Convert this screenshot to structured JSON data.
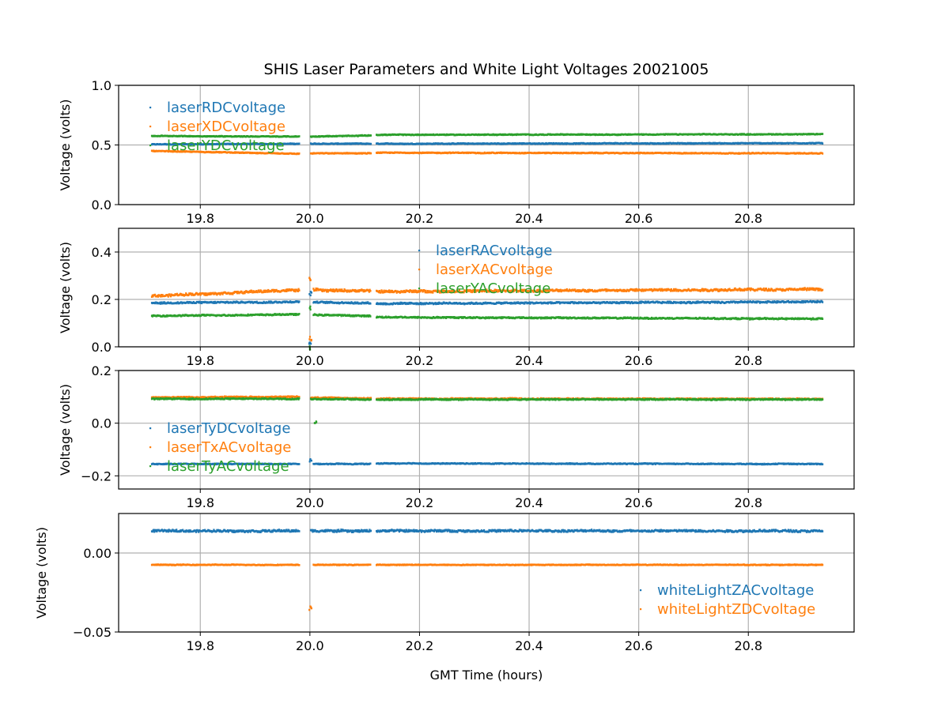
{
  "chart_data": {
    "type": "scatter",
    "title": "SHIS Laser Parameters and White Light Voltages 20021005",
    "xlabel": "GMT Time (hours)",
    "xlim": [
      19.651,
      20.993
    ],
    "xticks": [
      19.8,
      20.0,
      20.2,
      20.4,
      20.6,
      20.8
    ],
    "xtick_labels": [
      "19.8",
      "20.0",
      "20.2",
      "20.4",
      "20.6",
      "20.8"
    ],
    "grid": true,
    "colors": {
      "blue": "#1f77b4",
      "orange": "#ff7f0e",
      "green": "#2ca02c"
    },
    "panels": [
      {
        "ylabel": "Voltage (volts)",
        "ylim": [
          0,
          1.0
        ],
        "yticks": [
          0,
          0.5,
          1.0
        ],
        "ytick_labels": [
          "0.0",
          "0.5",
          "1.0"
        ],
        "legend": "upper-left",
        "series": [
          {
            "name": "laserRDCvoltage",
            "color": "#1f77b4",
            "noise": 0.006,
            "segments": [
              [
                19.71,
                19.98,
                0.505,
                0.51
              ],
              [
                20.0,
                20.11,
                0.51,
                0.51
              ],
              [
                20.12,
                20.935,
                0.51,
                0.515
              ]
            ],
            "spikes": []
          },
          {
            "name": "laserXDCvoltage",
            "color": "#ff7f0e",
            "noise": 0.006,
            "segments": [
              [
                19.71,
                19.98,
                0.45,
                0.425
              ],
              [
                20.0,
                20.11,
                0.43,
                0.43
              ],
              [
                20.12,
                20.935,
                0.435,
                0.43
              ]
            ],
            "spikes": []
          },
          {
            "name": "laserYDCvoltage",
            "color": "#2ca02c",
            "noise": 0.006,
            "segments": [
              [
                19.71,
                19.98,
                0.575,
                0.57
              ],
              [
                20.0,
                20.11,
                0.57,
                0.58
              ],
              [
                20.12,
                20.935,
                0.585,
                0.59
              ]
            ],
            "spikes": []
          }
        ]
      },
      {
        "ylabel": "Voltage (volts)",
        "ylim": [
          0,
          0.5
        ],
        "yticks": [
          0,
          0.2,
          0.4
        ],
        "ytick_labels": [
          "0.0",
          "0.2",
          "0.4"
        ],
        "legend": "upper-center",
        "series": [
          {
            "name": "laserRACvoltage",
            "color": "#1f77b4",
            "noise": 0.006,
            "segments": [
              [
                19.71,
                19.98,
                0.185,
                0.19
              ],
              [
                20.005,
                20.11,
                0.188,
                0.185
              ],
              [
                20.12,
                20.935,
                0.182,
                0.19
              ]
            ],
            "spikes": [
              [
                20.0,
                0.23
              ],
              [
                20.0,
                0.015
              ]
            ]
          },
          {
            "name": "laserXACvoltage",
            "color": "#ff7f0e",
            "noise": 0.009,
            "segments": [
              [
                19.71,
                19.98,
                0.215,
                0.24
              ],
              [
                20.005,
                20.11,
                0.24,
                0.235
              ],
              [
                20.12,
                20.935,
                0.233,
                0.243
              ]
            ],
            "spikes": [
              [
                20.0,
                0.295
              ],
              [
                20.0,
                0.04
              ]
            ]
          },
          {
            "name": "laserYACvoltage",
            "color": "#2ca02c",
            "noise": 0.005,
            "segments": [
              [
                19.71,
                19.98,
                0.13,
                0.137
              ],
              [
                20.005,
                20.11,
                0.135,
                0.13
              ],
              [
                20.12,
                20.935,
                0.125,
                0.118
              ]
            ],
            "spikes": [
              [
                20.0,
                0.17
              ],
              [
                20.0,
                0.0
              ]
            ]
          }
        ]
      },
      {
        "ylabel": "Voltage (volts)",
        "ylim": [
          -0.25,
          0.2
        ],
        "yticks": [
          -0.2,
          0.0,
          0.2
        ],
        "ytick_labels": [
          "−0.2",
          "0.0",
          "0.2"
        ],
        "legend": "center-left",
        "series": [
          {
            "name": "laserTyDCvoltage",
            "color": "#1f77b4",
            "noise": 0.003,
            "segments": [
              [
                19.71,
                19.98,
                -0.155,
                -0.155
              ],
              [
                20.005,
                20.11,
                -0.155,
                -0.155
              ],
              [
                20.12,
                20.935,
                -0.153,
                -0.155
              ]
            ],
            "spikes": [
              [
                20.0,
                -0.135
              ]
            ]
          },
          {
            "name": "laserTxACvoltage",
            "color": "#ff7f0e",
            "noise": 0.004,
            "segments": [
              [
                19.71,
                19.98,
                0.098,
                0.1
              ],
              [
                20.0,
                20.11,
                0.097,
                0.094
              ],
              [
                20.12,
                20.935,
                0.093,
                0.092
              ]
            ],
            "spikes": []
          },
          {
            "name": "laserTyACvoltage",
            "color": "#2ca02c",
            "noise": 0.004,
            "segments": [
              [
                19.71,
                19.98,
                0.092,
                0.093
              ],
              [
                20.0,
                20.11,
                0.092,
                0.09
              ],
              [
                20.12,
                20.935,
                0.09,
                0.09
              ]
            ],
            "spikes": [
              [
                20.01,
                0.01
              ]
            ]
          }
        ]
      },
      {
        "ylabel": "Voltage (volts)",
        "ylim": [
          -0.05,
          0.025
        ],
        "yticks": [
          -0.05,
          0.0
        ],
        "ytick_labels": [
          "−0.05",
          "0.00"
        ],
        "legend": "lower-right",
        "series": [
          {
            "name": "whiteLightZACvoltage",
            "color": "#1f77b4",
            "noise": 0.0012,
            "segments": [
              [
                19.71,
                19.98,
                0.014,
                0.014
              ],
              [
                20.0,
                20.11,
                0.014,
                0.014
              ],
              [
                20.12,
                20.935,
                0.014,
                0.014
              ]
            ],
            "spikes": []
          },
          {
            "name": "whiteLightZDCvoltage",
            "color": "#ff7f0e",
            "noise": 0.0004,
            "segments": [
              [
                19.71,
                19.98,
                -0.0075,
                -0.0075
              ],
              [
                20.005,
                20.11,
                -0.0075,
                -0.0075
              ],
              [
                20.12,
                20.935,
                -0.0075,
                -0.0075
              ]
            ],
            "spikes": [
              [
                20.0,
                -0.034
              ]
            ]
          }
        ]
      }
    ]
  }
}
